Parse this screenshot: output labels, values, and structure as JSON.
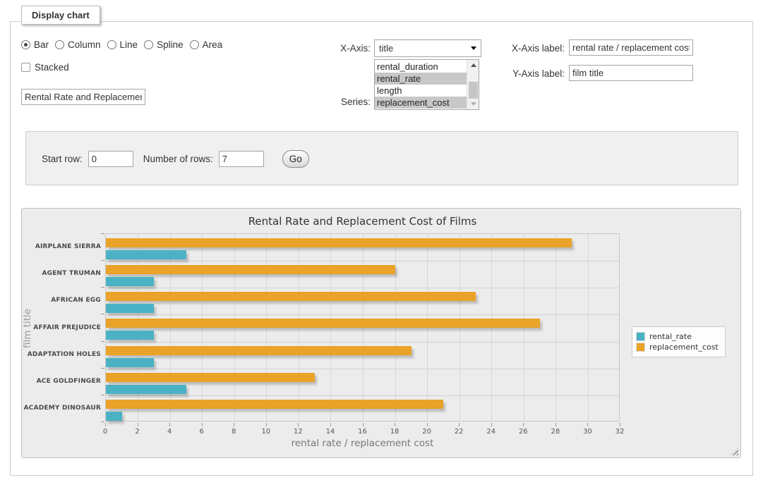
{
  "fieldset": {
    "legend": "Display chart"
  },
  "chart_type_options": [
    {
      "label": "Bar",
      "selected": true
    },
    {
      "label": "Column",
      "selected": false
    },
    {
      "label": "Line",
      "selected": false
    },
    {
      "label": "Spline",
      "selected": false
    },
    {
      "label": "Area",
      "selected": false
    }
  ],
  "stacked": {
    "label": "Stacked",
    "checked": false
  },
  "title_input": {
    "value": "Rental Rate and Replacement Cost of Films"
  },
  "x_axis_select": {
    "label": "X-Axis:",
    "selected": "title"
  },
  "series_select": {
    "label": "Series:",
    "options": [
      {
        "label": "rental_duration",
        "selected": false
      },
      {
        "label": "rental_rate",
        "selected": true
      },
      {
        "label": "length",
        "selected": false
      },
      {
        "label": "replacement_cost",
        "selected": true
      }
    ]
  },
  "x_axis_label_field": {
    "label": "X-Axis label:",
    "value": "rental rate / replacement cost"
  },
  "y_axis_label_field": {
    "label": "Y-Axis label:",
    "value": "film title"
  },
  "row_controls": {
    "start_row_label": "Start row:",
    "start_row_value": "0",
    "num_rows_label": "Number of rows:",
    "num_rows_value": "7",
    "go_label": "Go"
  },
  "chart_data": {
    "type": "bar",
    "orientation": "horizontal",
    "title": "Rental Rate and Replacement Cost of Films",
    "categories": [
      "AIRPLANE SIERRA",
      "AGENT TRUMAN",
      "AFRICAN EGG",
      "AFFAIR PREJUDICE",
      "ADAPTATION HOLES",
      "ACE GOLDFINGER",
      "ACADEMY DINOSAUR"
    ],
    "series": [
      {
        "name": "rental_rate",
        "color": "#4bb2c5",
        "values": [
          4.99,
          2.99,
          2.99,
          2.99,
          2.99,
          4.99,
          0.99
        ]
      },
      {
        "name": "replacement_cost",
        "color": "#eaa228",
        "values": [
          28.99,
          17.99,
          22.99,
          26.99,
          18.99,
          12.99,
          20.99
        ]
      }
    ],
    "xlabel": "rental rate / replacement cost",
    "ylabel": "film title",
    "xlim": [
      0,
      32
    ],
    "xticks": [
      0,
      2,
      4,
      6,
      8,
      10,
      12,
      14,
      16,
      18,
      20,
      22,
      24,
      26,
      28,
      30,
      32
    ],
    "grid": true,
    "legend_position": "right"
  }
}
